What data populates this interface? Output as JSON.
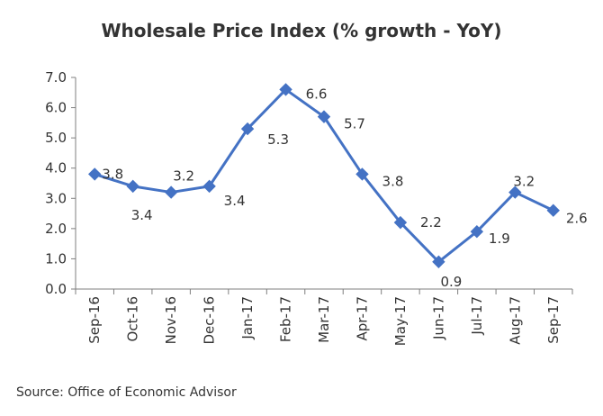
{
  "chart_data": {
    "type": "line",
    "title": "Wholesale Price Index (% growth - YoY)",
    "categories": [
      "Sep-16",
      "Oct-16",
      "Nov-16",
      "Dec-16",
      "Jan-17",
      "Feb-17",
      "Mar-17",
      "Apr-17",
      "May-17",
      "Jun-17",
      "Jul-17",
      "Aug-17",
      "Sep-17"
    ],
    "series": [
      {
        "values": [
          3.8,
          3.4,
          3.2,
          3.4,
          5.3,
          6.6,
          5.7,
          3.8,
          2.2,
          0.9,
          1.9,
          3.2,
          2.6
        ],
        "color": "#4472C4"
      }
    ],
    "data_labels": [
      "3.8",
      "3.4",
      "3.2",
      "3.4",
      "5.3",
      "6.6",
      "5.7",
      "3.8",
      "2.2",
      "0.9",
      "1.9",
      "3.2",
      "2.6"
    ],
    "y_ticks": [
      "0.0",
      "1.0",
      "2.0",
      "3.0",
      "4.0",
      "5.0",
      "6.0",
      "7.0"
    ],
    "ylim": [
      0,
      7
    ],
    "xlabel": "",
    "ylabel": "",
    "grid": false,
    "legend": "none",
    "marker": "diamond"
  },
  "source": "Source: Office of Economic Advisor"
}
